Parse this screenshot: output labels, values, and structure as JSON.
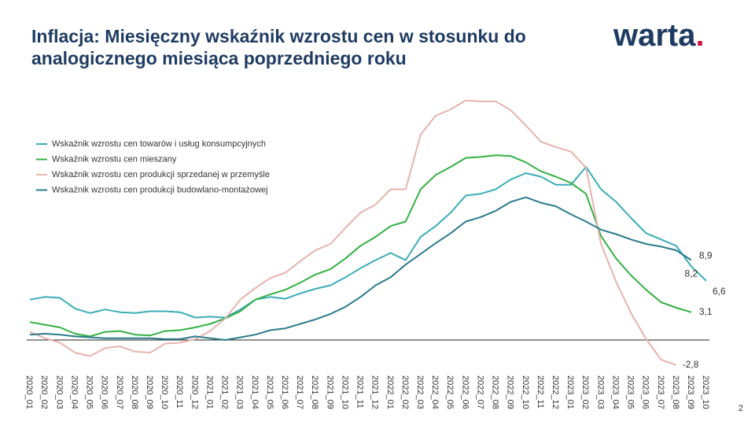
{
  "chart_data": {
    "type": "line",
    "title": [
      "Inflacja: Miesięczny wskaźnik wzrostu cen w stosunku do",
      "analogicznego miesiąca poprzedniego roku"
    ],
    "logo": [
      "warta",
      "."
    ],
    "page_number": "2",
    "categories": [
      "2020_01",
      "2020_02",
      "2020_03",
      "2020_04",
      "2020_05",
      "2020_06",
      "2020_07",
      "2020_08",
      "2020_09",
      "2020_10",
      "2020_11",
      "2020_12",
      "2021_01",
      "2021_02",
      "2021_03",
      "2021_04",
      "2021_05",
      "2021_06",
      "2021_07",
      "2021_08",
      "2021_09",
      "2021_10",
      "2021_11",
      "2021_12",
      "2022_01",
      "2022_02",
      "2022_03",
      "2022_04",
      "2022_05",
      "2022_06",
      "2022_07",
      "2022_08",
      "2022_09",
      "2022_10",
      "2022_11",
      "2022_12",
      "2023_01",
      "2023_02",
      "2023_03",
      "2023_04",
      "2023_05",
      "2023_06",
      "2023_07",
      "2023_08",
      "2023_09",
      "2023_10"
    ],
    "ylim": [
      -5,
      30
    ],
    "legend": "upper left",
    "series": [
      {
        "name": "Wskaźnik wzrostu cen towarów i usług konsumpcyjnych",
        "color": "#3aacb8",
        "values": [
          4.5,
          4.8,
          4.7,
          3.5,
          3.0,
          3.4,
          3.1,
          3.0,
          3.2,
          3.2,
          3.1,
          2.5,
          2.6,
          2.5,
          3.4,
          4.5,
          4.8,
          4.6,
          5.2,
          5.7,
          6.1,
          7.0,
          8.0,
          8.9,
          9.7,
          8.9,
          11.5,
          12.7,
          14.2,
          16.1,
          16.3,
          16.8,
          17.9,
          18.6,
          18.2,
          17.3,
          17.3,
          19.3,
          16.8,
          15.4,
          13.6,
          11.9,
          11.2,
          10.5,
          8.2,
          6.6
        ],
        "value_labels": [
          null,
          null,
          null,
          null,
          null,
          null,
          null,
          null,
          null,
          null,
          null,
          null,
          null,
          null,
          null,
          null,
          null,
          null,
          null,
          null,
          null,
          null,
          null,
          null,
          null,
          null,
          null,
          null,
          null,
          null,
          null,
          null,
          null,
          null,
          null,
          null,
          null,
          null,
          null,
          null,
          null,
          null,
          null,
          null,
          "8,2",
          "6,6"
        ]
      },
      {
        "name": "Wskaźnik wzrostu cen mieszany",
        "color": "#33b044",
        "values": [
          2.0,
          1.7,
          1.4,
          0.7,
          0.4,
          0.9,
          1.0,
          0.6,
          0.5,
          1.0,
          1.1,
          1.4,
          1.8,
          2.4,
          3.2,
          4.5,
          5.1,
          5.6,
          6.4,
          7.3,
          7.9,
          9.1,
          10.5,
          11.5,
          12.7,
          13.2,
          16.8,
          18.4,
          19.3,
          20.3,
          20.4,
          20.6,
          20.5,
          19.8,
          18.8,
          18.2,
          17.5,
          16.3,
          11.6,
          9.1,
          7.2,
          5.6,
          4.2,
          3.6,
          3.1,
          null
        ],
        "value_labels": [
          null,
          null,
          null,
          null,
          null,
          null,
          null,
          null,
          null,
          null,
          null,
          null,
          null,
          null,
          null,
          null,
          null,
          null,
          null,
          null,
          null,
          null,
          null,
          null,
          null,
          null,
          null,
          null,
          null,
          null,
          null,
          null,
          null,
          null,
          null,
          null,
          null,
          null,
          null,
          null,
          null,
          null,
          null,
          null,
          "3,1",
          null
        ]
      },
      {
        "name": "Wskaźnik wzrostu cen produkcji sprzedanej w przemyśle",
        "color": "#e6b3ae",
        "values": [
          0.9,
          0.2,
          -0.3,
          -1.4,
          -1.8,
          -0.9,
          -0.7,
          -1.3,
          -1.4,
          -0.4,
          -0.3,
          0.1,
          1.0,
          2.4,
          4.5,
          5.8,
          6.9,
          7.5,
          8.8,
          10.0,
          10.7,
          12.5,
          14.2,
          15.1,
          16.8,
          16.8,
          22.9,
          25.0,
          25.7,
          26.7,
          26.6,
          26.6,
          25.6,
          23.9,
          22.1,
          21.5,
          21.0,
          19.2,
          10.7,
          6.5,
          3.0,
          0.1,
          -2.2,
          -2.8,
          null,
          null
        ],
        "value_labels": [
          null,
          null,
          null,
          null,
          null,
          null,
          null,
          null,
          null,
          null,
          null,
          null,
          null,
          null,
          null,
          null,
          null,
          null,
          null,
          null,
          null,
          null,
          null,
          null,
          null,
          null,
          null,
          null,
          null,
          null,
          null,
          null,
          null,
          null,
          null,
          null,
          null,
          null,
          null,
          null,
          null,
          null,
          null,
          "-2,8",
          null,
          null
        ]
      },
      {
        "name": "Wskaźnik wzrostu cen produkcji budowlano-montażowej",
        "color": "#2b7b8a",
        "values": [
          0.6,
          0.7,
          0.6,
          0.4,
          0.3,
          0.2,
          0.2,
          0.2,
          0.2,
          0.1,
          0.1,
          0.4,
          0.2,
          0.0,
          0.3,
          0.6,
          1.1,
          1.3,
          1.8,
          2.3,
          2.9,
          3.7,
          4.8,
          6.1,
          7.0,
          8.4,
          9.6,
          10.8,
          11.9,
          13.2,
          13.7,
          14.4,
          15.4,
          15.9,
          15.3,
          14.9,
          14.0,
          13.2,
          12.3,
          11.8,
          11.2,
          10.7,
          10.4,
          10.0,
          8.9,
          null
        ],
        "value_labels": [
          null,
          null,
          null,
          null,
          null,
          null,
          null,
          null,
          null,
          null,
          null,
          null,
          null,
          null,
          null,
          null,
          null,
          null,
          null,
          null,
          null,
          null,
          null,
          null,
          null,
          null,
          null,
          null,
          null,
          null,
          null,
          null,
          null,
          null,
          null,
          null,
          null,
          null,
          null,
          null,
          null,
          null,
          null,
          null,
          "8,9",
          null
        ]
      }
    ]
  }
}
